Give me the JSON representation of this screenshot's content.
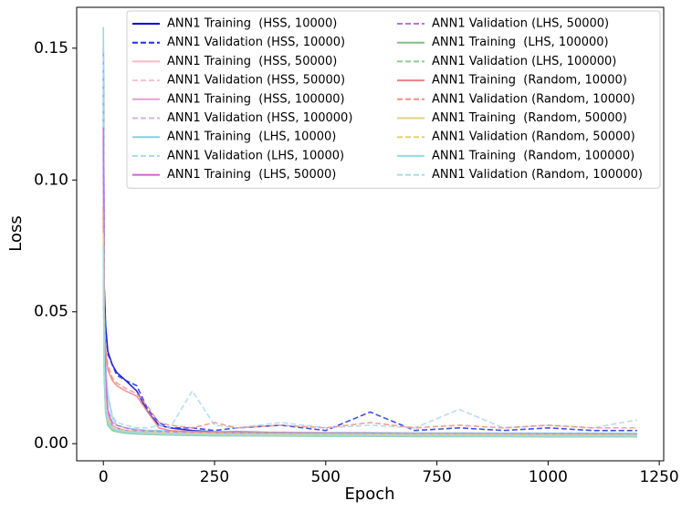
{
  "chart_data": {
    "type": "line",
    "x_label": "Epoch",
    "y_label": "Loss",
    "x": [
      0,
      2,
      5,
      10,
      20,
      30,
      50,
      75,
      100,
      125,
      150,
      200,
      250,
      300,
      400,
      500,
      600,
      700,
      800,
      900,
      1000,
      1100,
      1200
    ],
    "xlim": [
      -60,
      1260
    ],
    "xticks": [
      0,
      250,
      500,
      750,
      1000,
      1250
    ],
    "ylim": [
      -0.0065,
      0.1655
    ],
    "yticks": [
      {
        "value": 0,
        "label": "0.00"
      },
      {
        "value": 0.05,
        "label": "0.05"
      },
      {
        "value": 0.1,
        "label": "0.10"
      },
      {
        "value": 0.15,
        "label": "0.15"
      }
    ],
    "legend": "upper right",
    "legend_columns": 2,
    "grid": false,
    "series": [
      {
        "name": "ANN1 Training  (HSS, 10000)",
        "color": "#0000cd",
        "linestyle": "solid",
        "values": [
          0.15,
          0.06,
          0.045,
          0.035,
          0.03,
          0.027,
          0.024,
          0.02,
          0.012,
          0.007,
          0.006,
          0.005,
          0.0045,
          0.0045,
          0.0042,
          0.004,
          0.004,
          0.0038,
          0.0038,
          0.0037,
          0.0037,
          0.0036,
          0.0036
        ]
      },
      {
        "name": "ANN1 Validation (HSS, 10000)",
        "color": "#1f2fe0",
        "linestyle": "dashed",
        "values": [
          0.14,
          0.058,
          0.044,
          0.034,
          0.03,
          0.026,
          0.024,
          0.022,
          0.013,
          0.008,
          0.006,
          0.006,
          0.005,
          0.006,
          0.007,
          0.005,
          0.012,
          0.005,
          0.006,
          0.005,
          0.006,
          0.005,
          0.005
        ]
      },
      {
        "name": "ANN1 Training  (HSS, 50000)",
        "color": "#ffb6c1",
        "linestyle": "solid",
        "values": [
          0.1,
          0.04,
          0.02,
          0.012,
          0.007,
          0.006,
          0.005,
          0.0045,
          0.004,
          0.004,
          0.0038,
          0.0036,
          0.0035,
          0.0034,
          0.0033,
          0.0032,
          0.0032,
          0.0031,
          0.0031,
          0.003,
          0.003,
          0.003,
          0.003
        ]
      },
      {
        "name": "ANN1 Validation (HSS, 50000)",
        "color": "#f4c2cc",
        "linestyle": "dashed",
        "values": [
          0.095,
          0.038,
          0.02,
          0.013,
          0.008,
          0.007,
          0.006,
          0.005,
          0.0045,
          0.0045,
          0.004,
          0.0042,
          0.004,
          0.0038,
          0.0037,
          0.0036,
          0.0036,
          0.0035,
          0.0035,
          0.0034,
          0.0034,
          0.0034,
          0.0033
        ]
      },
      {
        "name": "ANN1 Training  (HSS, 100000)",
        "color": "#dda0dd",
        "linestyle": "solid",
        "values": [
          0.09,
          0.035,
          0.016,
          0.009,
          0.006,
          0.005,
          0.0045,
          0.004,
          0.0038,
          0.0036,
          0.0035,
          0.0033,
          0.0032,
          0.0031,
          0.003,
          0.003,
          0.0029,
          0.0029,
          0.0028,
          0.0028,
          0.0028,
          0.0027,
          0.0027
        ]
      },
      {
        "name": "ANN1 Validation (HSS, 100000)",
        "color": "#d8b0e0",
        "linestyle": "dashed",
        "values": [
          0.088,
          0.034,
          0.017,
          0.01,
          0.007,
          0.0055,
          0.005,
          0.0045,
          0.004,
          0.004,
          0.0038,
          0.0036,
          0.0035,
          0.0034,
          0.0033,
          0.0033,
          0.0032,
          0.0032,
          0.0031,
          0.0031,
          0.003,
          0.003,
          0.003
        ]
      },
      {
        "name": "ANN1 Training  (LHS, 10000)",
        "color": "#8ccfe0",
        "linestyle": "solid",
        "values": [
          0.158,
          0.05,
          0.03,
          0.018,
          0.01,
          0.007,
          0.006,
          0.0055,
          0.005,
          0.005,
          0.0048,
          0.0046,
          0.0045,
          0.0044,
          0.0043,
          0.0042,
          0.0042,
          0.0041,
          0.0041,
          0.004,
          0.004,
          0.004,
          0.004
        ]
      },
      {
        "name": "ANN1 Validation (LHS, 10000)",
        "color": "#a8d8ee",
        "linestyle": "dashed",
        "values": [
          0.15,
          0.048,
          0.03,
          0.019,
          0.011,
          0.008,
          0.007,
          0.006,
          0.006,
          0.007,
          0.006,
          0.02,
          0.007,
          0.006,
          0.008,
          0.006,
          0.007,
          0.006,
          0.013,
          0.006,
          0.007,
          0.006,
          0.009
        ]
      },
      {
        "name": "ANN1 Training  (LHS, 50000)",
        "color": "#d85fd8",
        "linestyle": "solid",
        "values": [
          0.12,
          0.045,
          0.025,
          0.012,
          0.007,
          0.006,
          0.005,
          0.0045,
          0.0042,
          0.004,
          0.0039,
          0.0037,
          0.0036,
          0.0035,
          0.0034,
          0.0033,
          0.0033,
          0.0032,
          0.0032,
          0.0031,
          0.0031,
          0.0031,
          0.003
        ]
      },
      {
        "name": "ANN1 Validation (LHS, 50000)",
        "color": "#c070e0",
        "linestyle": "dashed",
        "values": [
          0.115,
          0.044,
          0.024,
          0.013,
          0.008,
          0.007,
          0.006,
          0.005,
          0.0048,
          0.0046,
          0.0045,
          0.0043,
          0.0042,
          0.0041,
          0.004,
          0.0039,
          0.0039,
          0.0038,
          0.0038,
          0.0037,
          0.0037,
          0.0037,
          0.0036
        ]
      },
      {
        "name": "ANN1 Training  (LHS, 100000)",
        "color": "#80c080",
        "linestyle": "solid",
        "values": [
          0.07,
          0.025,
          0.012,
          0.007,
          0.005,
          0.0045,
          0.004,
          0.0037,
          0.0035,
          0.0034,
          0.0033,
          0.0031,
          0.003,
          0.003,
          0.0029,
          0.0028,
          0.0028,
          0.0027,
          0.0027,
          0.0027,
          0.0026,
          0.0026,
          0.0026
        ]
      },
      {
        "name": "ANN1 Validation (LHS, 100000)",
        "color": "#90cc90",
        "linestyle": "dashed",
        "values": [
          0.068,
          0.026,
          0.013,
          0.008,
          0.0055,
          0.005,
          0.0045,
          0.004,
          0.0038,
          0.0037,
          0.0036,
          0.0034,
          0.0033,
          0.0032,
          0.0031,
          0.0031,
          0.003,
          0.003,
          0.003,
          0.0029,
          0.0029,
          0.0029,
          0.0028
        ]
      },
      {
        "name": "ANN1 Training  (Random, 10000)",
        "color": "#f08080",
        "linestyle": "solid",
        "values": [
          0.09,
          0.05,
          0.035,
          0.028,
          0.024,
          0.022,
          0.02,
          0.018,
          0.012,
          0.006,
          0.005,
          0.0045,
          0.0042,
          0.004,
          0.004,
          0.0039,
          0.0038,
          0.0038,
          0.0037,
          0.0037,
          0.0036,
          0.0036,
          0.0036
        ]
      },
      {
        "name": "ANN1 Validation (Random, 10000)",
        "color": "#f49080",
        "linestyle": "dashed",
        "values": [
          0.088,
          0.05,
          0.036,
          0.03,
          0.025,
          0.023,
          0.021,
          0.019,
          0.014,
          0.008,
          0.007,
          0.006,
          0.008,
          0.006,
          0.007,
          0.006,
          0.008,
          0.006,
          0.007,
          0.006,
          0.007,
          0.006,
          0.006
        ]
      },
      {
        "name": "ANN1 Training  (Random, 50000)",
        "color": "#e0d080",
        "linestyle": "solid",
        "values": [
          0.08,
          0.03,
          0.015,
          0.009,
          0.006,
          0.005,
          0.0045,
          0.0042,
          0.004,
          0.0038,
          0.0037,
          0.0035,
          0.0034,
          0.0033,
          0.0032,
          0.0031,
          0.0031,
          0.003,
          0.003,
          0.003,
          0.0029,
          0.0029,
          0.0029
        ]
      },
      {
        "name": "ANN1 Validation (Random, 50000)",
        "color": "#e8d070",
        "linestyle": "dashed",
        "values": [
          0.078,
          0.03,
          0.016,
          0.01,
          0.007,
          0.006,
          0.005,
          0.0046,
          0.0044,
          0.0042,
          0.0041,
          0.004,
          0.0039,
          0.0038,
          0.0037,
          0.0036,
          0.0036,
          0.0035,
          0.0035,
          0.0035,
          0.0034,
          0.0034,
          0.0034
        ]
      },
      {
        "name": "ANN1 Training  (Random, 100000)",
        "color": "#90dce0",
        "linestyle": "solid",
        "values": [
          0.075,
          0.028,
          0.013,
          0.008,
          0.0055,
          0.0048,
          0.0043,
          0.004,
          0.0037,
          0.0036,
          0.0035,
          0.0033,
          0.0032,
          0.0031,
          0.003,
          0.003,
          0.0029,
          0.0029,
          0.0028,
          0.0028,
          0.0028,
          0.0027,
          0.0027
        ]
      },
      {
        "name": "ANN1 Validation (Random, 100000)",
        "color": "#a0dcee",
        "linestyle": "dashed",
        "values": [
          0.073,
          0.028,
          0.014,
          0.009,
          0.006,
          0.0052,
          0.0047,
          0.0044,
          0.0042,
          0.004,
          0.0039,
          0.0038,
          0.0037,
          0.0036,
          0.0036,
          0.0035,
          0.0035,
          0.0034,
          0.0034,
          0.0034,
          0.0033,
          0.0033,
          0.0033
        ]
      }
    ]
  }
}
